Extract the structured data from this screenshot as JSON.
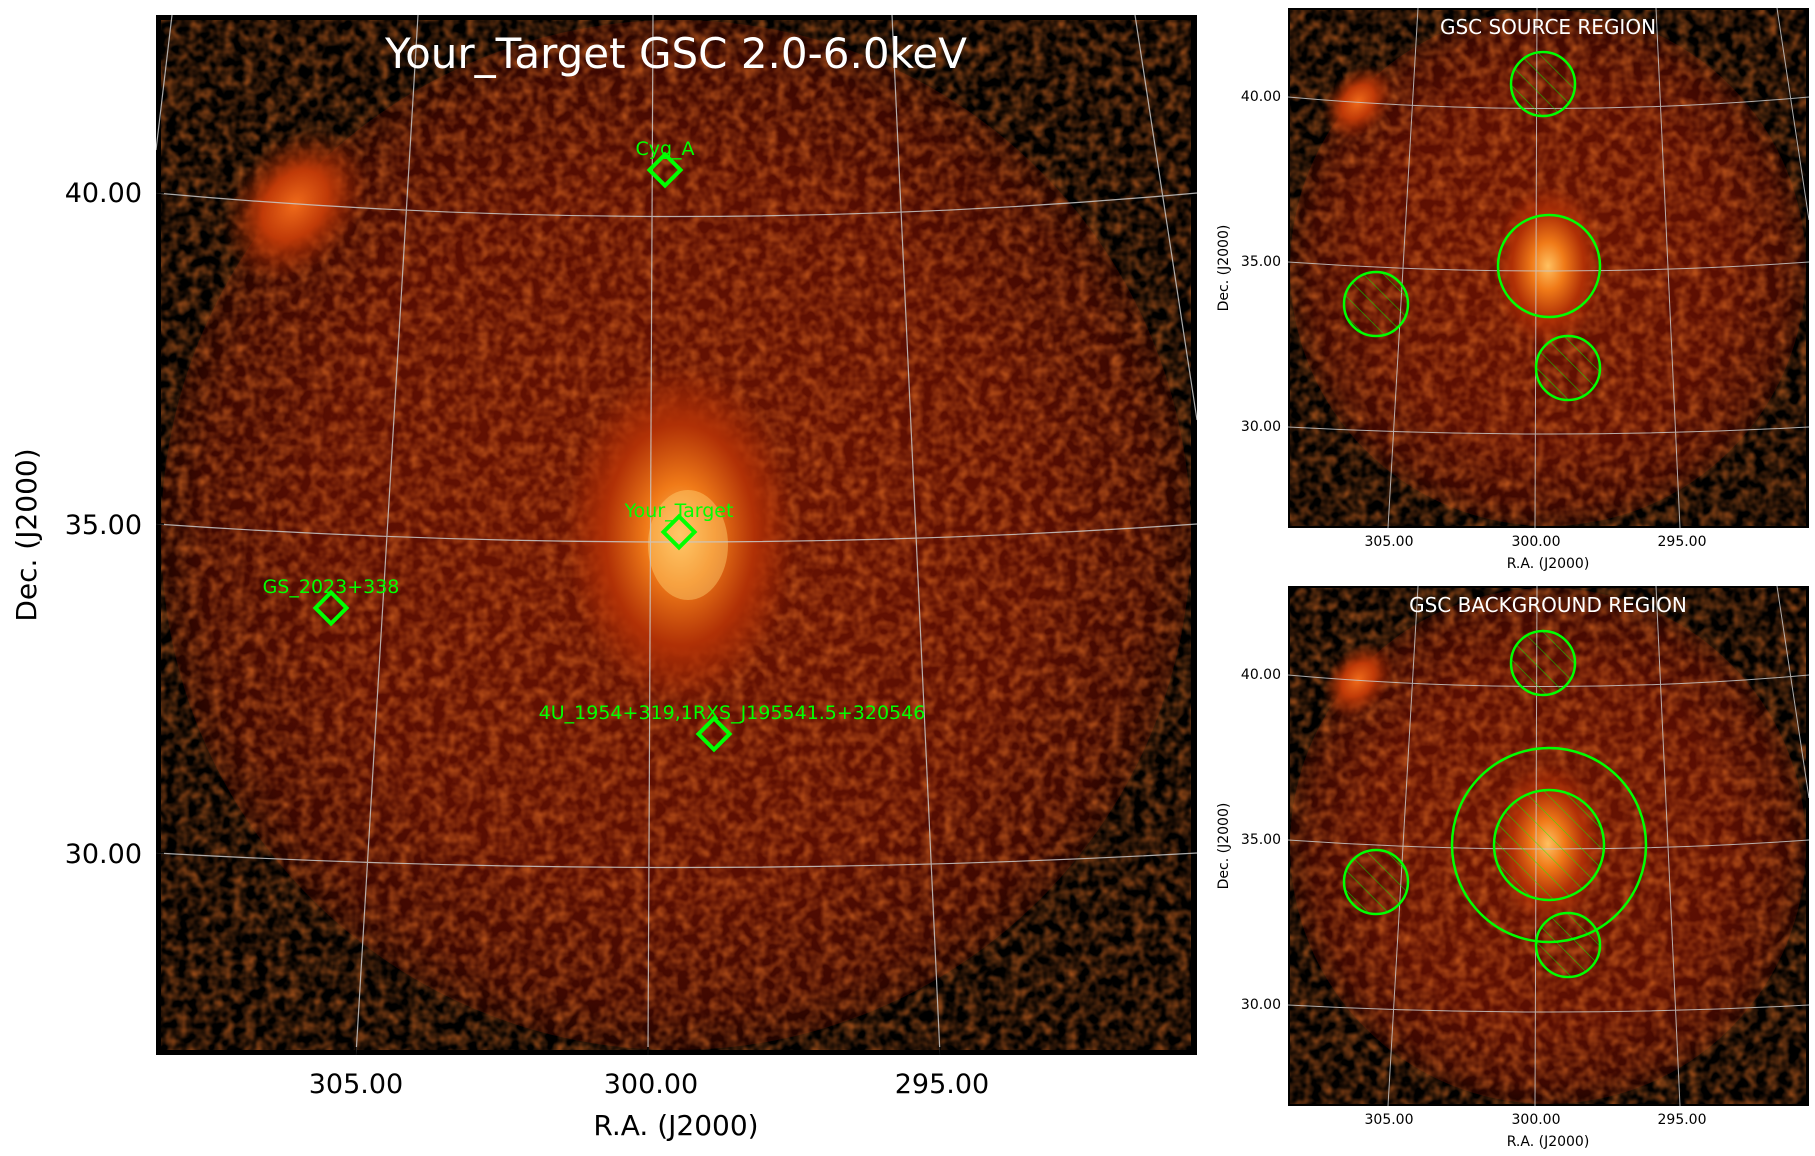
{
  "main": {
    "title": "Your_Target GSC 2.0-6.0keV",
    "xlabel": "R.A. (J2000)",
    "ylabel": "Dec. (J2000)",
    "xticks": [
      "305.00",
      "300.00",
      "295.00"
    ],
    "yticks": [
      "40.00",
      "35.00",
      "30.00"
    ],
    "sources": [
      {
        "label": "Cyg_A"
      },
      {
        "label": "Your_Target"
      },
      {
        "label": "GS_2023+338"
      },
      {
        "label": "4U_1954+319,1RXS_J195541.5+320546"
      }
    ]
  },
  "source_panel": {
    "title": "GSC SOURCE REGION",
    "xlabel": "R.A. (J2000)",
    "ylabel": "Dec. (J2000)",
    "xticks": [
      "305.00",
      "300.00",
      "295.00"
    ],
    "yticks": [
      "40.00",
      "35.00",
      "30.00"
    ]
  },
  "background_panel": {
    "title": "GSC BACKGROUND REGION",
    "xlabel": "R.A. (J2000)",
    "ylabel": "Dec. (J2000)",
    "xticks": [
      "305.00",
      "300.00",
      "295.00"
    ],
    "yticks": [
      "40.00",
      "35.00",
      "30.00"
    ]
  },
  "colors": {
    "region": "#00ff00",
    "grid": "#c8c8c8",
    "background": "#000000",
    "emission_dark": "#4a0800",
    "emission_mid": "#b02a00",
    "emission_bright": "#ffb040"
  }
}
